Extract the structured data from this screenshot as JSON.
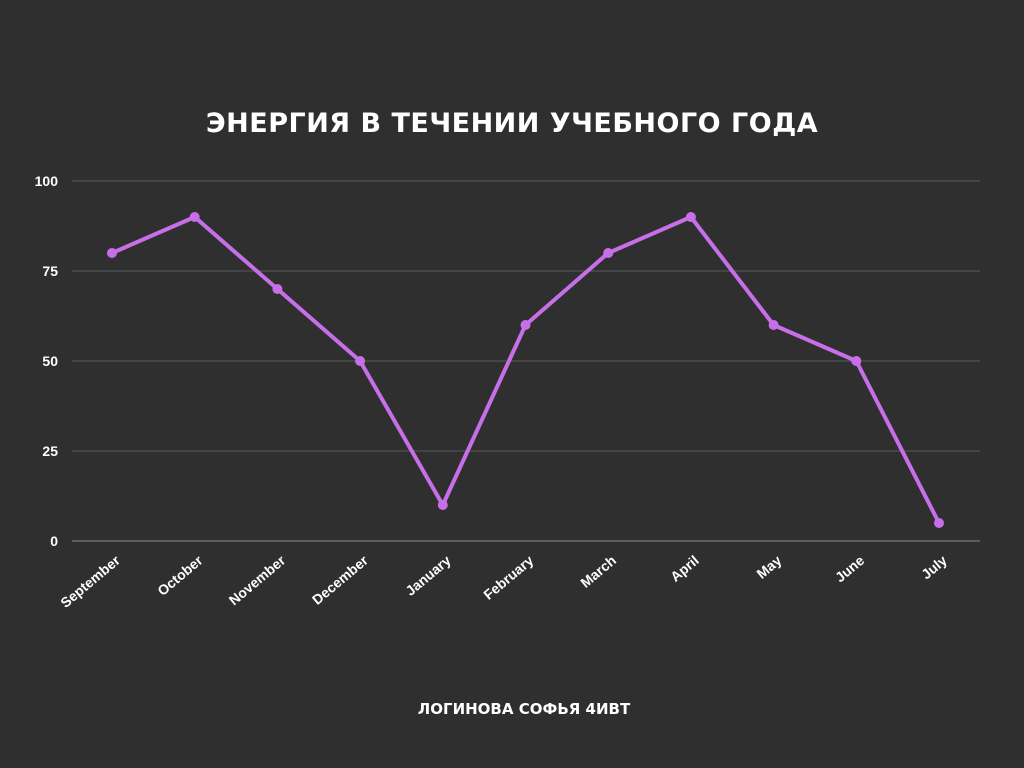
{
  "chart_data": {
    "type": "line",
    "title": "ЭНЕРГИЯ В ТЕЧЕНИИ УЧЕБНОГО ГОДА",
    "categories": [
      "September",
      "October",
      "November",
      "December",
      "January",
      "February",
      "March",
      "April",
      "May",
      "June",
      "July"
    ],
    "series": [
      {
        "values": [
          80,
          90,
          70,
          50,
          10,
          60,
          80,
          90,
          60,
          50,
          5
        ]
      }
    ],
    "ylim": [
      0,
      100
    ],
    "yticks": [
      0,
      25,
      50,
      75,
      100
    ],
    "grid": true,
    "line_color": "#c76fe8",
    "grid_color": "#5a5a5a",
    "axis_color": "#8a8a8a"
  },
  "caption": "ЛОГИНОВА СОФЬЯ 4ИВТ",
  "colors": {
    "background": "#2f2f2f",
    "text": "#ffffff"
  }
}
